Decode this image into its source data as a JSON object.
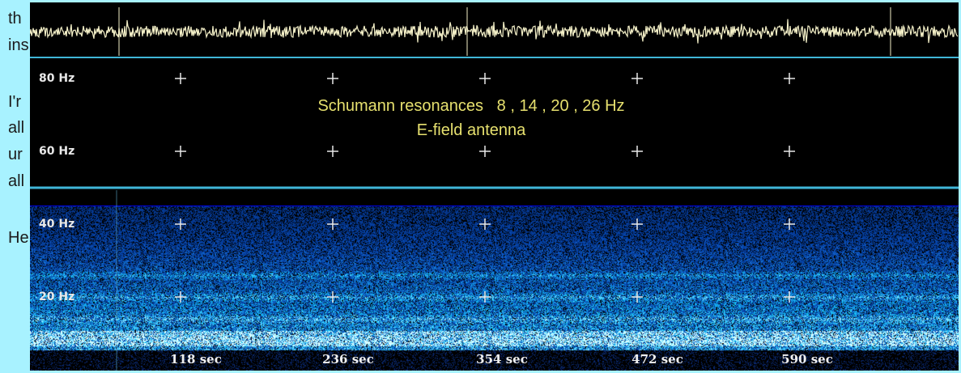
{
  "page_fragments": [
    "th",
    "ins",
    "I'r",
    "all",
    "ur",
    "all",
    "He"
  ],
  "chart_data": {
    "type": "heatmap",
    "title": "Schumann resonances   8 , 14 , 20 , 26 Hz",
    "subtitle": "E-field antenna",
    "y_ticks": [
      "80 Hz",
      "60 Hz",
      "40 Hz",
      "20 Hz"
    ],
    "y_tick_values": [
      80,
      60,
      40,
      20
    ],
    "x_ticks": [
      "118 sec",
      "236 sec",
      "354 sec",
      "472 sec",
      "590 sec"
    ],
    "x_tick_values": [
      118,
      236,
      354,
      472,
      590
    ],
    "resonance_hz": [
      8,
      14,
      20,
      26
    ],
    "colormap": [
      "#000000",
      "#0a2a7a",
      "#1f63d8",
      "#38c8ff",
      "#c8ffff"
    ],
    "waveform_color": "#f4f0c8",
    "caption_color": "#e6e06e"
  }
}
